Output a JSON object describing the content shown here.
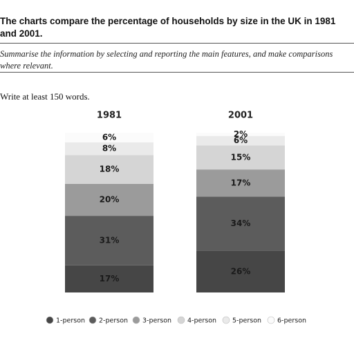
{
  "header": {
    "title": "The charts compare the percentage of households by size in the UK in 1981 and 2001.",
    "instruction": "Summarise the information by selecting and reporting the main features, and make comparisons where relevant.",
    "note": "Write at least 150 words."
  },
  "chart_data": {
    "type": "bar",
    "stacked": true,
    "categories": [
      "1981",
      "2001"
    ],
    "ylim": [
      0,
      100
    ],
    "series": [
      {
        "name": "1-person",
        "color": "#464646",
        "values": [
          17,
          26
        ],
        "value_labels": [
          "17%",
          "26%"
        ]
      },
      {
        "name": "2-person",
        "color": "#5c5c5c",
        "values": [
          31,
          34
        ],
        "value_labels": [
          "31%",
          "34%"
        ]
      },
      {
        "name": "3-person",
        "color": "#9b9b9b",
        "values": [
          20,
          17
        ],
        "value_labels": [
          "20%",
          "17%"
        ]
      },
      {
        "name": "4-person",
        "color": "#d5d5d5",
        "values": [
          18,
          15
        ],
        "value_labels": [
          "18%",
          "15%"
        ]
      },
      {
        "name": "5-person",
        "color": "#eaeaea",
        "values": [
          8,
          6
        ],
        "value_labels": [
          "8%",
          "6%"
        ]
      },
      {
        "name": "6-person",
        "color": "#fbfbfb",
        "values": [
          6,
          2
        ],
        "value_labels": [
          "6%",
          "2%"
        ]
      }
    ]
  }
}
